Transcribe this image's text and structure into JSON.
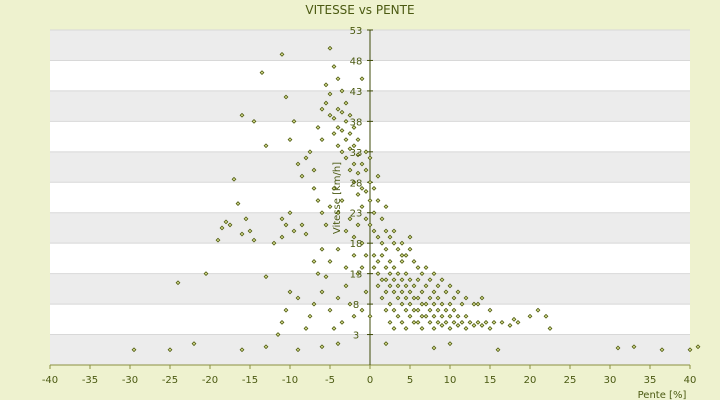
{
  "chart_data": {
    "type": "scatter",
    "title": "VITESSE vs PENTE",
    "xlabel": "Pente [%]",
    "ylabel": "Vitesse [km/h]",
    "xlim": [
      -40,
      40
    ],
    "ylim": [
      -2,
      53
    ],
    "xticks": [
      -40,
      -35,
      -30,
      -25,
      -20,
      -15,
      -10,
      -5,
      0,
      5,
      10,
      15,
      20,
      25,
      30,
      35,
      40
    ],
    "yticks": [
      3,
      8,
      13,
      18,
      23,
      28,
      33,
      38,
      43,
      48,
      53
    ],
    "grid": true,
    "colors": {
      "background": "#eef2cf",
      "band": "#ececec",
      "plot": "#ffffff",
      "marker": "#4e5a10",
      "text": "#4b5a12"
    },
    "points": [
      [
        -29.5,
        0.5
      ],
      [
        -25,
        0.5
      ],
      [
        -22,
        1.5
      ],
      [
        -16,
        0.5
      ],
      [
        -13,
        1
      ],
      [
        -9,
        0.5
      ],
      [
        -6,
        1
      ],
      [
        -4,
        1.5
      ],
      [
        2,
        1.5
      ],
      [
        8,
        0.8
      ],
      [
        10,
        1.5
      ],
      [
        16,
        0.5
      ],
      [
        31,
        0.8
      ],
      [
        33,
        1
      ],
      [
        36.5,
        0.5
      ],
      [
        40,
        0.5
      ],
      [
        41,
        1
      ],
      [
        -24,
        11.5
      ],
      [
        -20.5,
        13
      ],
      [
        -19,
        18.5
      ],
      [
        -18.5,
        20.5
      ],
      [
        -18,
        21.5
      ],
      [
        -17.5,
        21
      ],
      [
        -16,
        19.5
      ],
      [
        -16.5,
        24.5
      ],
      [
        -17,
        28.5
      ],
      [
        -15.5,
        22
      ],
      [
        -15,
        20
      ],
      [
        -14.5,
        18.5
      ],
      [
        -13,
        12.5
      ],
      [
        -12,
        18
      ],
      [
        -11,
        19
      ],
      [
        -10.5,
        21
      ],
      [
        -11,
        22
      ],
      [
        -10,
        23
      ],
      [
        -9.5,
        20
      ],
      [
        -8.5,
        21
      ],
      [
        -8,
        19.5
      ],
      [
        -11.5,
        3
      ],
      [
        -11,
        5
      ],
      [
        -10.5,
        7
      ],
      [
        -10,
        10
      ],
      [
        -9,
        9
      ],
      [
        -8,
        4
      ],
      [
        -7.5,
        6
      ],
      [
        -7,
        8
      ],
      [
        -6.5,
        13
      ],
      [
        -6,
        10
      ],
      [
        -5.5,
        12.5
      ],
      [
        -5,
        7
      ],
      [
        -4.5,
        4
      ],
      [
        -4,
        9
      ],
      [
        -3.5,
        5
      ],
      [
        -3,
        11
      ],
      [
        -2.5,
        8
      ],
      [
        -2,
        6
      ],
      [
        -1.5,
        13
      ],
      [
        -1,
        7
      ],
      [
        -0.5,
        10
      ],
      [
        0,
        6
      ],
      [
        -16,
        39
      ],
      [
        -14.5,
        38
      ],
      [
        -13.5,
        46
      ],
      [
        -13,
        34
      ],
      [
        -11,
        49
      ],
      [
        -10.5,
        42
      ],
      [
        -10,
        35
      ],
      [
        -9.5,
        38
      ],
      [
        -9,
        31
      ],
      [
        -8.5,
        29
      ],
      [
        -8,
        32
      ],
      [
        -7.5,
        33
      ],
      [
        -7,
        30
      ],
      [
        -6.5,
        37
      ],
      [
        -6,
        35
      ],
      [
        -5.5,
        44
      ],
      [
        -5,
        50
      ],
      [
        -4.5,
        47
      ],
      [
        -4,
        45
      ],
      [
        -3.5,
        43
      ],
      [
        -3,
        41
      ],
      [
        -2.5,
        39
      ],
      [
        -2,
        37
      ],
      [
        -1.5,
        35
      ],
      [
        -1,
        45
      ],
      [
        -0.5,
        33
      ],
      [
        -6,
        40
      ],
      [
        -5.5,
        41
      ],
      [
        -5,
        42.5
      ],
      [
        -5,
        39
      ],
      [
        -4.5,
        38.5
      ],
      [
        -4.5,
        36
      ],
      [
        -4,
        40
      ],
      [
        -4,
        37
      ],
      [
        -4,
        34
      ],
      [
        -3.5,
        39.5
      ],
      [
        -3.5,
        36.5
      ],
      [
        -3.5,
        33
      ],
      [
        -3,
        38
      ],
      [
        -3,
        35
      ],
      [
        -3,
        32
      ],
      [
        -2.5,
        36
      ],
      [
        -2.5,
        33.5
      ],
      [
        -2.5,
        30
      ],
      [
        -2,
        34
      ],
      [
        -2,
        31
      ],
      [
        -2,
        28
      ],
      [
        -1.5,
        32.5
      ],
      [
        -1.5,
        29.5
      ],
      [
        -1.5,
        26
      ],
      [
        -1,
        31
      ],
      [
        -1,
        27
      ],
      [
        -1,
        24
      ],
      [
        -0.5,
        30
      ],
      [
        -0.5,
        26.5
      ],
      [
        -0.5,
        22
      ],
      [
        0,
        32
      ],
      [
        0,
        28
      ],
      [
        0,
        25
      ],
      [
        0,
        21
      ],
      [
        0.5,
        27
      ],
      [
        0.5,
        23
      ],
      [
        0.5,
        20
      ],
      [
        1,
        29
      ],
      [
        1,
        25
      ],
      [
        1,
        19
      ],
      [
        1.5,
        22
      ],
      [
        1.5,
        18
      ],
      [
        2,
        24
      ],
      [
        2,
        20
      ],
      [
        2,
        17
      ],
      [
        -7,
        27
      ],
      [
        -6.5,
        25
      ],
      [
        -6,
        23
      ],
      [
        -5.5,
        21
      ],
      [
        -5,
        24
      ],
      [
        -4.5,
        27
      ],
      [
        -4,
        23
      ],
      [
        -3.5,
        25
      ],
      [
        -3,
        20
      ],
      [
        -2.5,
        22
      ],
      [
        -2,
        19
      ],
      [
        -1.5,
        21
      ],
      [
        -1,
        18
      ],
      [
        -0.5,
        16
      ],
      [
        -7,
        15
      ],
      [
        -6,
        17
      ],
      [
        -5,
        15
      ],
      [
        -4,
        17
      ],
      [
        -3,
        14
      ],
      [
        -2,
        16
      ],
      [
        -1,
        14
      ],
      [
        0.5,
        16
      ],
      [
        0.5,
        14
      ],
      [
        1,
        15
      ],
      [
        1,
        13
      ],
      [
        1,
        11
      ],
      [
        1.5,
        16
      ],
      [
        1.5,
        12
      ],
      [
        1.5,
        9
      ],
      [
        2,
        14
      ],
      [
        2,
        12
      ],
      [
        2,
        10
      ],
      [
        2,
        7
      ],
      [
        2.5,
        15
      ],
      [
        2.5,
        13
      ],
      [
        2.5,
        11
      ],
      [
        2.5,
        8
      ],
      [
        2.5,
        5
      ],
      [
        3,
        14
      ],
      [
        3,
        12
      ],
      [
        3,
        10
      ],
      [
        3,
        7
      ],
      [
        3,
        4
      ],
      [
        3.5,
        13
      ],
      [
        3.5,
        11
      ],
      [
        3.5,
        9
      ],
      [
        3.5,
        6
      ],
      [
        4,
        15
      ],
      [
        4,
        12
      ],
      [
        4,
        10
      ],
      [
        4,
        8
      ],
      [
        4,
        5
      ],
      [
        4.5,
        13
      ],
      [
        4.5,
        11
      ],
      [
        4.5,
        9
      ],
      [
        4.5,
        7
      ],
      [
        4.5,
        4
      ],
      [
        5,
        12
      ],
      [
        5,
        10
      ],
      [
        5,
        8
      ],
      [
        5,
        6
      ],
      [
        5.5,
        11
      ],
      [
        5.5,
        9
      ],
      [
        5.5,
        7
      ],
      [
        5.5,
        5
      ],
      [
        6,
        12
      ],
      [
        6,
        9
      ],
      [
        6,
        7
      ],
      [
        6,
        5
      ],
      [
        6.5,
        10
      ],
      [
        6.5,
        8
      ],
      [
        6.5,
        6
      ],
      [
        6.5,
        4
      ],
      [
        7,
        11
      ],
      [
        7,
        8
      ],
      [
        7,
        6
      ],
      [
        7.5,
        9
      ],
      [
        7.5,
        7
      ],
      [
        7.5,
        5
      ],
      [
        8,
        10
      ],
      [
        8,
        8
      ],
      [
        8,
        6
      ],
      [
        8,
        4
      ],
      [
        8.5,
        9
      ],
      [
        8.5,
        7
      ],
      [
        8.5,
        5
      ],
      [
        9,
        8
      ],
      [
        9,
        6
      ],
      [
        9,
        4.5
      ],
      [
        9.5,
        7
      ],
      [
        9.5,
        5
      ],
      [
        10,
        8
      ],
      [
        10,
        6
      ],
      [
        10,
        4
      ],
      [
        10.5,
        7
      ],
      [
        10.5,
        5
      ],
      [
        11,
        6
      ],
      [
        11,
        4.5
      ],
      [
        11.5,
        5
      ],
      [
        12,
        6
      ],
      [
        12,
        4
      ],
      [
        12.5,
        5
      ],
      [
        13,
        4.5
      ],
      [
        13.5,
        5
      ],
      [
        13.5,
        8
      ],
      [
        14,
        4.5
      ],
      [
        14.5,
        5
      ],
      [
        15,
        4
      ],
      [
        15.5,
        5
      ],
      [
        16.5,
        5
      ],
      [
        17.5,
        4.5
      ],
      [
        18,
        5.5
      ],
      [
        18.5,
        5
      ],
      [
        20,
        6
      ],
      [
        21,
        7
      ],
      [
        22,
        6
      ],
      [
        22.5,
        4
      ],
      [
        3,
        18
      ],
      [
        3.5,
        17
      ],
      [
        4,
        16
      ],
      [
        4.5,
        16
      ],
      [
        5,
        17
      ],
      [
        5.5,
        15
      ],
      [
        6,
        14
      ],
      [
        6.5,
        13
      ],
      [
        7,
        14
      ],
      [
        7.5,
        12
      ],
      [
        8,
        13
      ],
      [
        8.5,
        11
      ],
      [
        9,
        12
      ],
      [
        9.5,
        10
      ],
      [
        10,
        11
      ],
      [
        10.5,
        9
      ],
      [
        11,
        10
      ],
      [
        11.5,
        8
      ],
      [
        12,
        9
      ],
      [
        13,
        8
      ],
      [
        14,
        9
      ],
      [
        15,
        7
      ],
      [
        3,
        20
      ],
      [
        2.5,
        19
      ],
      [
        4,
        18
      ],
      [
        5,
        19
      ]
    ]
  }
}
